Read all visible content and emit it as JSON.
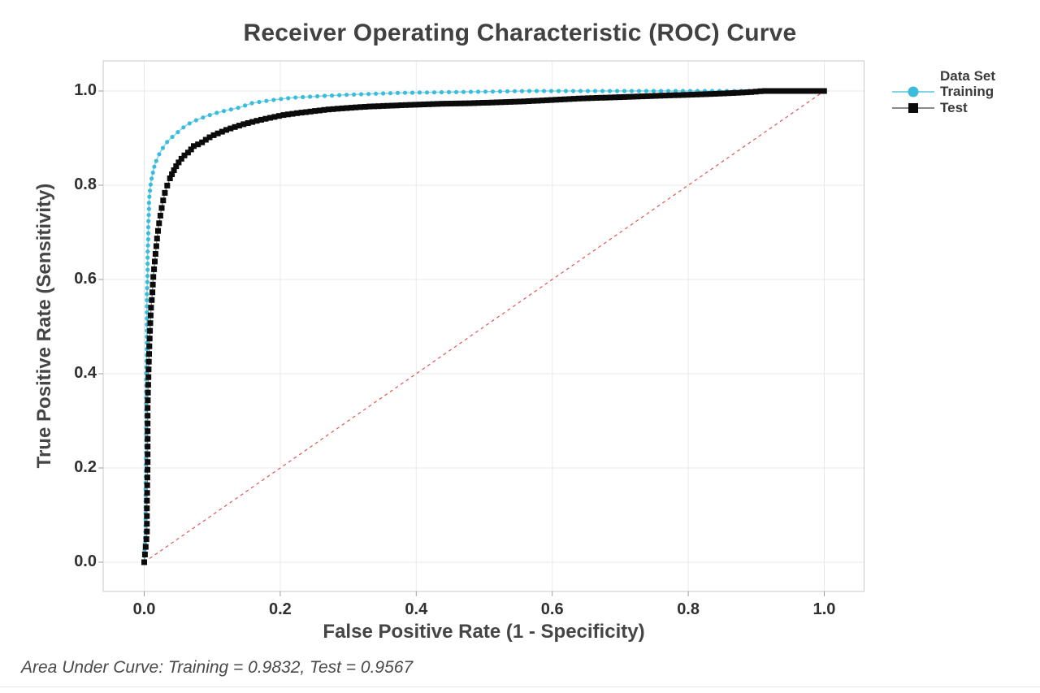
{
  "chart_data": {
    "type": "line",
    "title": "Receiver Operating Characteristic (ROC) Curve",
    "xlabel": "False Positive Rate (1 - Specificity)",
    "ylabel": "True Positive Rate (Sensitivity)",
    "annotation": "Area Under Curve: Training = 0.9832, Test = 0.9567",
    "auc": {
      "training": 0.9832,
      "test": 0.9567
    },
    "xlim": [
      0,
      1
    ],
    "ylim": [
      0,
      1
    ],
    "grid": true,
    "legend": {
      "title": "Data Set",
      "position": "right"
    },
    "x_tick_values": [
      0,
      0.2,
      0.4,
      0.6,
      0.8,
      1.0
    ],
    "x_tick_labels": [
      "0.0",
      "0.2",
      "0.4",
      "0.6",
      "0.8",
      "1.0"
    ],
    "y_tick_values": [
      0,
      0.2,
      0.4,
      0.6,
      0.8,
      1.0
    ],
    "y_tick_labels": [
      "0.0",
      "0.2",
      "0.4",
      "0.6",
      "0.8",
      "1.0"
    ],
    "reference_line": {
      "from": [
        0,
        0
      ],
      "to": [
        1,
        1
      ],
      "style": "dashed",
      "color": "#e05656"
    },
    "colors": {
      "grid": "#e9e9e9",
      "frame": "#c9c9c9",
      "tick": "#9f9f9f"
    },
    "series": [
      {
        "name": "Training",
        "marker": "circle",
        "color": "#3cbcda",
        "line_color": "#7fd4e8",
        "points": [
          [
            0.0,
            0.0
          ],
          [
            0.002,
            0.08
          ],
          [
            0.002,
            0.16
          ],
          [
            0.003,
            0.24
          ],
          [
            0.003,
            0.32
          ],
          [
            0.003,
            0.4
          ],
          [
            0.004,
            0.46
          ],
          [
            0.004,
            0.52
          ],
          [
            0.004,
            0.57
          ],
          [
            0.005,
            0.615
          ],
          [
            0.005,
            0.655
          ],
          [
            0.006,
            0.69
          ],
          [
            0.006,
            0.72
          ],
          [
            0.007,
            0.745
          ],
          [
            0.007,
            0.765
          ],
          [
            0.008,
            0.782
          ],
          [
            0.009,
            0.796
          ],
          [
            0.01,
            0.808
          ],
          [
            0.012,
            0.822
          ],
          [
            0.014,
            0.835
          ],
          [
            0.016,
            0.846
          ],
          [
            0.019,
            0.856
          ],
          [
            0.022,
            0.866
          ],
          [
            0.026,
            0.876
          ],
          [
            0.03,
            0.885
          ],
          [
            0.035,
            0.894
          ],
          [
            0.04,
            0.901
          ],
          [
            0.046,
            0.908
          ],
          [
            0.052,
            0.916
          ],
          [
            0.058,
            0.923
          ],
          [
            0.065,
            0.93
          ],
          [
            0.073,
            0.936
          ],
          [
            0.082,
            0.941
          ],
          [
            0.092,
            0.947
          ],
          [
            0.103,
            0.952
          ],
          [
            0.115,
            0.957
          ],
          [
            0.128,
            0.961
          ],
          [
            0.14,
            0.965
          ],
          [
            0.148,
            0.969
          ],
          [
            0.158,
            0.974
          ],
          [
            0.17,
            0.977
          ],
          [
            0.185,
            0.98
          ],
          [
            0.2,
            0.983
          ],
          [
            0.22,
            0.986
          ],
          [
            0.245,
            0.988
          ],
          [
            0.27,
            0.99
          ],
          [
            0.3,
            0.992
          ],
          [
            0.335,
            0.994
          ],
          [
            0.375,
            0.996
          ],
          [
            0.42,
            0.997
          ],
          [
            0.47,
            0.998
          ],
          [
            0.52,
            0.999
          ],
          [
            0.56,
            1.0
          ],
          [
            0.65,
            1.0
          ],
          [
            0.75,
            1.0
          ],
          [
            0.85,
            1.0
          ],
          [
            0.92,
            1.0
          ],
          [
            1.0,
            1.0
          ]
        ]
      },
      {
        "name": "Test",
        "marker": "square",
        "color": "#0b0b0b",
        "line_color": "#8a8a8a",
        "points": [
          [
            0.0,
            0.0
          ],
          [
            0.004,
            0.06
          ],
          [
            0.004,
            0.13
          ],
          [
            0.005,
            0.2
          ],
          [
            0.005,
            0.27
          ],
          [
            0.005,
            0.33
          ],
          [
            0.006,
            0.385
          ],
          [
            0.007,
            0.435
          ],
          [
            0.008,
            0.475
          ],
          [
            0.009,
            0.51
          ],
          [
            0.01,
            0.54
          ],
          [
            0.012,
            0.57
          ],
          [
            0.013,
            0.6
          ],
          [
            0.015,
            0.63
          ],
          [
            0.017,
            0.66
          ],
          [
            0.019,
            0.688
          ],
          [
            0.021,
            0.712
          ],
          [
            0.024,
            0.738
          ],
          [
            0.027,
            0.762
          ],
          [
            0.03,
            0.782
          ],
          [
            0.034,
            0.8
          ],
          [
            0.038,
            0.815
          ],
          [
            0.043,
            0.83
          ],
          [
            0.048,
            0.843
          ],
          [
            0.053,
            0.853
          ],
          [
            0.058,
            0.862
          ],
          [
            0.064,
            0.869
          ],
          [
            0.068,
            0.873
          ],
          [
            0.071,
            0.882
          ],
          [
            0.078,
            0.886
          ],
          [
            0.085,
            0.891
          ],
          [
            0.093,
            0.899
          ],
          [
            0.1,
            0.905
          ],
          [
            0.11,
            0.911
          ],
          [
            0.12,
            0.917
          ],
          [
            0.132,
            0.923
          ],
          [
            0.145,
            0.929
          ],
          [
            0.158,
            0.934
          ],
          [
            0.172,
            0.939
          ],
          [
            0.188,
            0.944
          ],
          [
            0.205,
            0.949
          ],
          [
            0.225,
            0.953
          ],
          [
            0.248,
            0.957
          ],
          [
            0.272,
            0.961
          ],
          [
            0.3,
            0.964
          ],
          [
            0.33,
            0.967
          ],
          [
            0.365,
            0.969
          ],
          [
            0.4,
            0.971
          ],
          [
            0.44,
            0.973
          ],
          [
            0.48,
            0.974
          ],
          [
            0.52,
            0.976
          ],
          [
            0.56,
            0.978
          ],
          [
            0.6,
            0.981
          ],
          [
            0.64,
            0.984
          ],
          [
            0.68,
            0.986
          ],
          [
            0.72,
            0.988
          ],
          [
            0.76,
            0.99
          ],
          [
            0.8,
            0.992
          ],
          [
            0.84,
            0.994
          ],
          [
            0.87,
            0.996
          ],
          [
            0.895,
            0.998
          ],
          [
            0.91,
            1.0
          ],
          [
            0.95,
            1.0
          ],
          [
            1.0,
            1.0
          ]
        ]
      }
    ]
  }
}
